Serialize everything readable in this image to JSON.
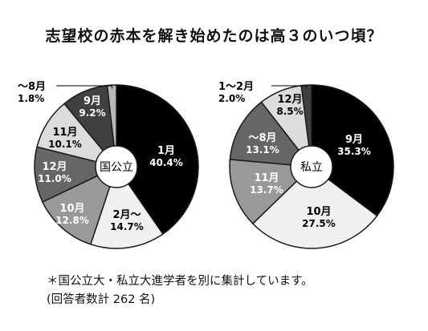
{
  "title": "志望校の赤本を解き始めたのは高３のいつ頃？",
  "notes": {
    "line1": "＊国公立大・私立大進学者を別に集計しています。",
    "line2": "(回答者数計 262 名)"
  },
  "chart_data": [
    {
      "type": "pie",
      "center_label": "国公立",
      "slices": [
        {
          "label": "1月",
          "value": 40.4,
          "value_text": "40.4%",
          "fill": "#000000",
          "text_color": "#ffffff"
        },
        {
          "label": "2月〜",
          "value": 14.7,
          "value_text": "14.7%",
          "fill": "#f0f0f0",
          "text_color": "#000000"
        },
        {
          "label": "10月",
          "value": 12.8,
          "value_text": "12.8%",
          "fill": "#999999",
          "text_color": "#ffffff"
        },
        {
          "label": "12月",
          "value": 11.0,
          "value_text": "11.0%",
          "fill": "#666666",
          "text_color": "#ffffff"
        },
        {
          "label": "11月",
          "value": 10.1,
          "value_text": "10.1%",
          "fill": "#dcdcdc",
          "text_color": "#000000"
        },
        {
          "label": "9月",
          "value": 9.2,
          "value_text": "9.2%",
          "fill": "#404040",
          "text_color": "#ffffff"
        },
        {
          "label": "〜8月",
          "value": 1.8,
          "value_text": "1.8%",
          "fill": "#b8b8b8",
          "text_color": "#000000"
        }
      ]
    },
    {
      "type": "pie",
      "center_label": "私立",
      "slices": [
        {
          "label": "9月",
          "value": 35.3,
          "value_text": "35.3%",
          "fill": "#000000",
          "text_color": "#ffffff"
        },
        {
          "label": "10月",
          "value": 27.5,
          "value_text": "27.5%",
          "fill": "#f0f0f0",
          "text_color": "#000000"
        },
        {
          "label": "11月",
          "value": 13.7,
          "value_text": "13.7%",
          "fill": "#999999",
          "text_color": "#ffffff"
        },
        {
          "label": "〜8月",
          "value": 13.1,
          "value_text": "13.1%",
          "fill": "#666666",
          "text_color": "#ffffff"
        },
        {
          "label": "12月",
          "value": 8.5,
          "value_text": "8.5%",
          "fill": "#dcdcdc",
          "text_color": "#000000"
        },
        {
          "label": "1〜2月",
          "value": 2.0,
          "value_text": "2.0%",
          "fill": "#404040",
          "text_color": "#ffffff"
        }
      ]
    }
  ]
}
